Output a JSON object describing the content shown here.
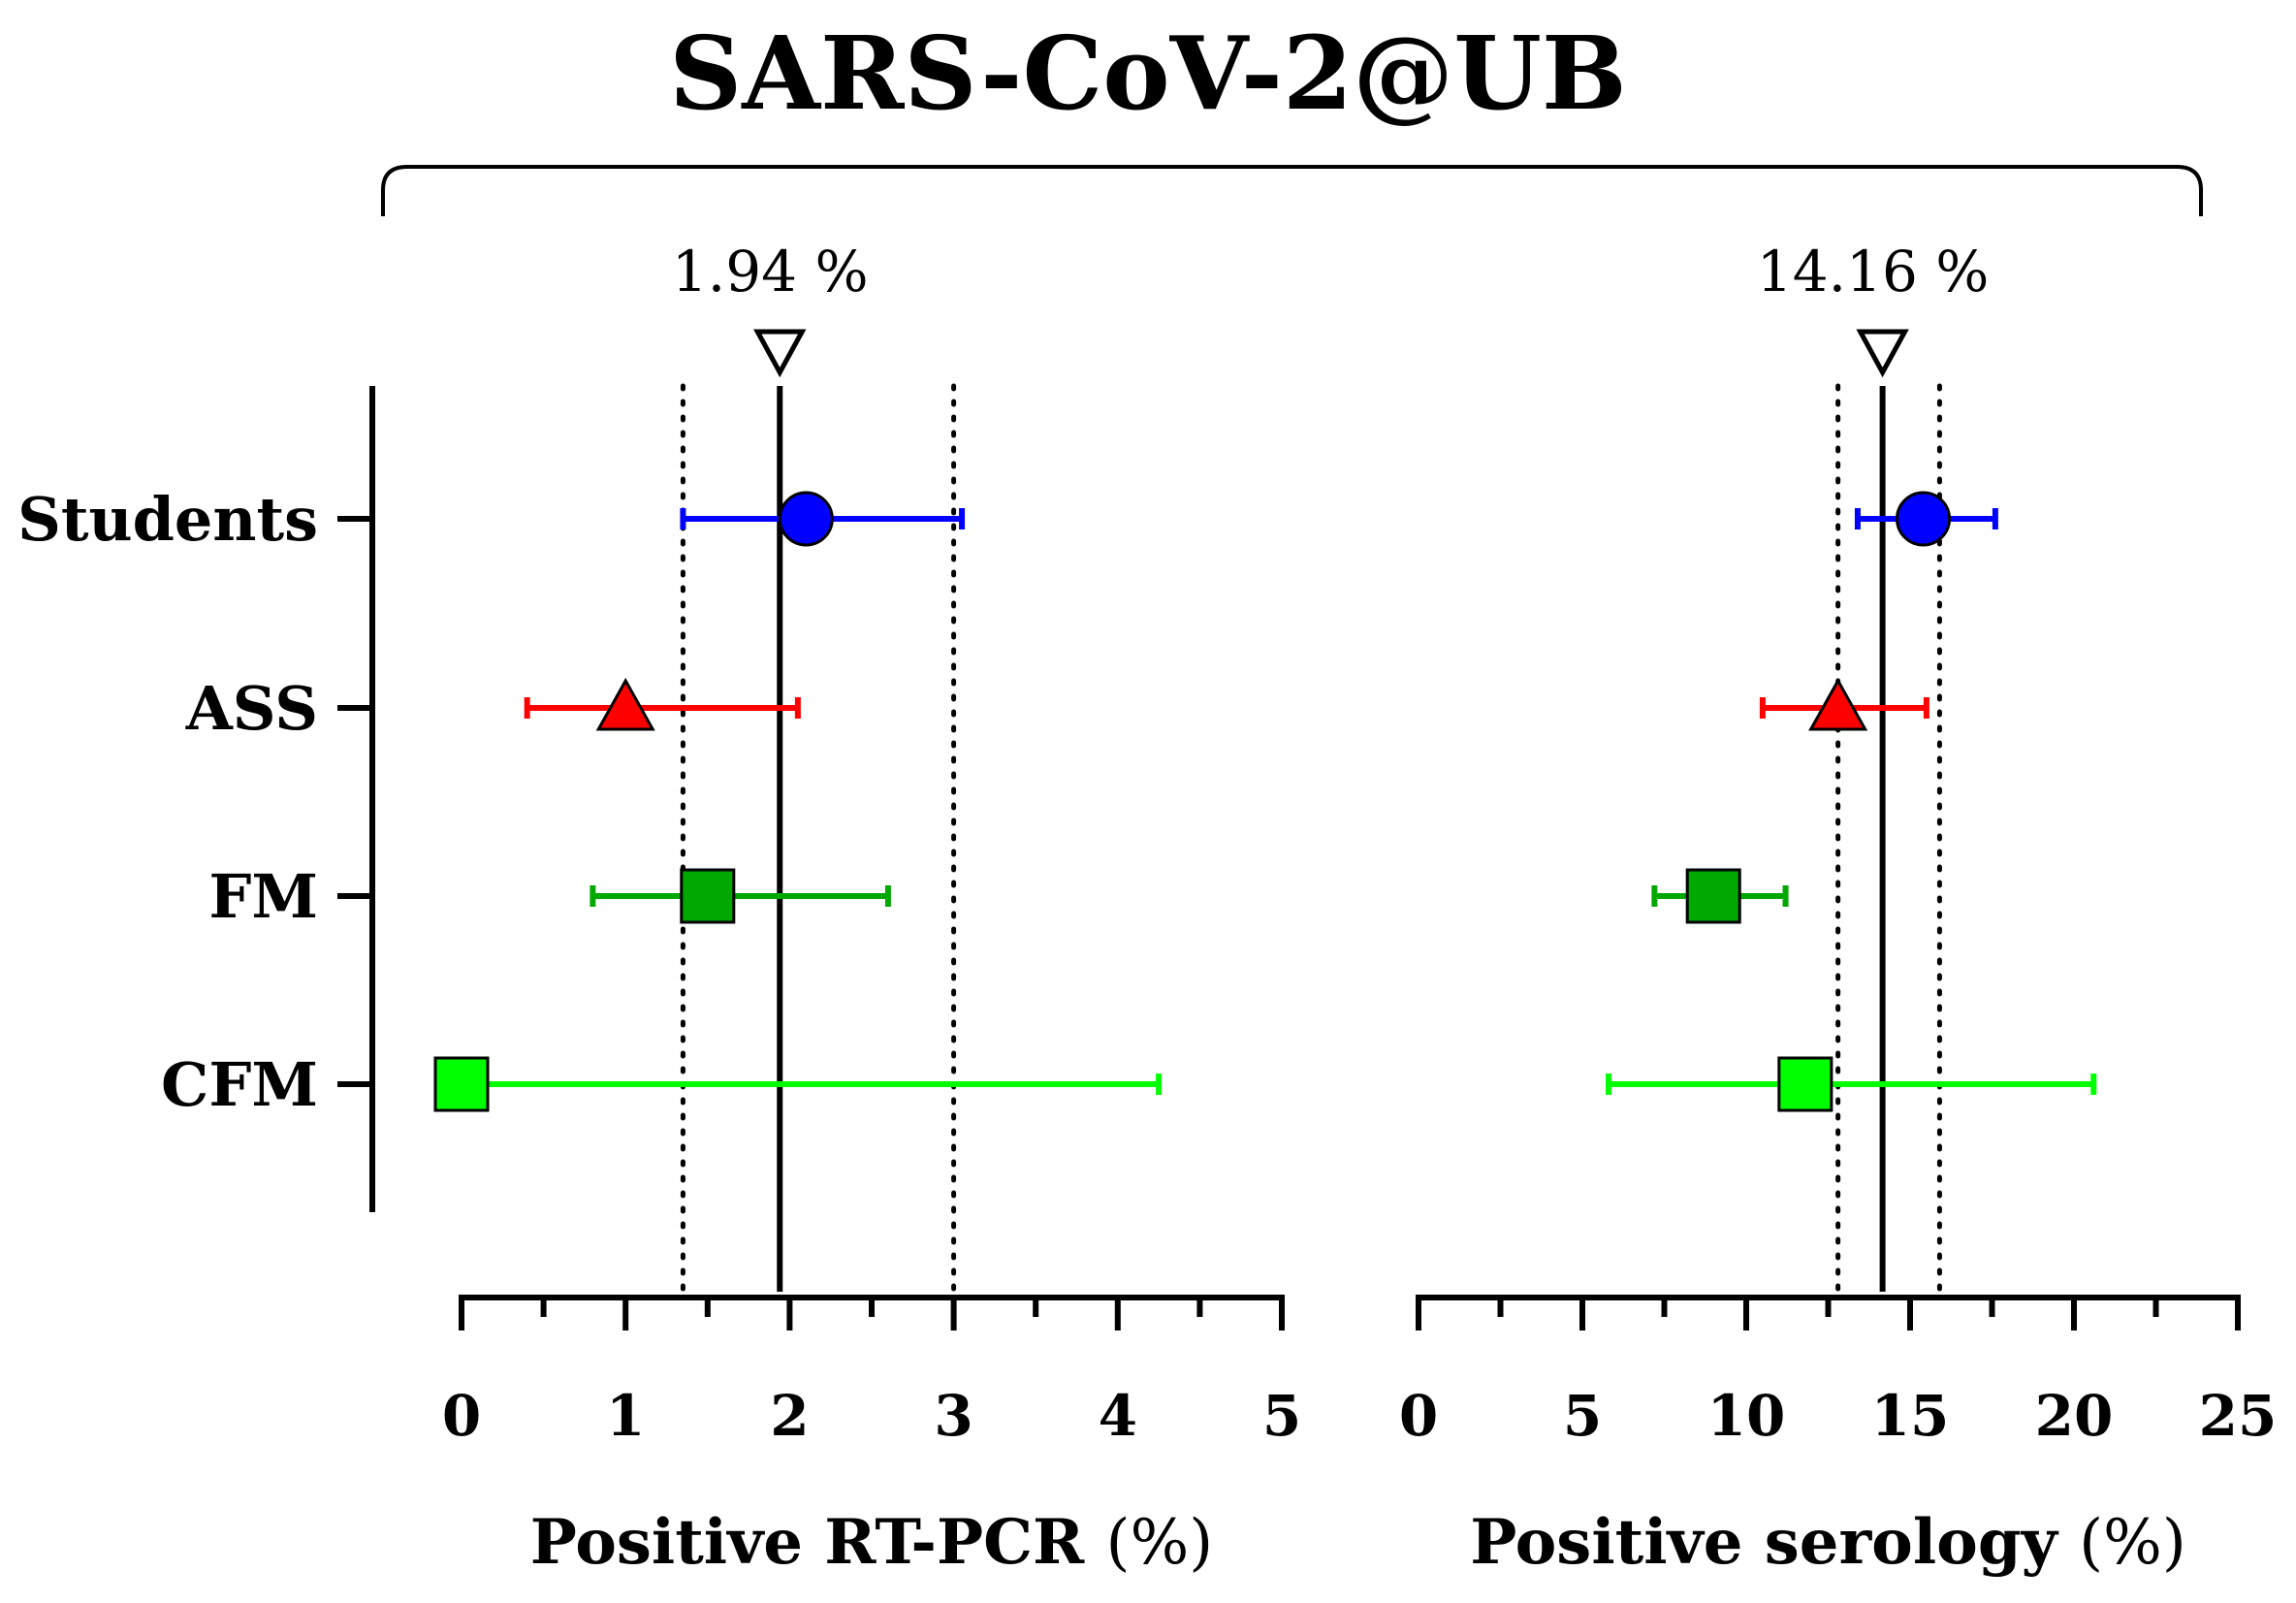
{
  "chart_data": {
    "type": "forest",
    "title": "SARS-CoV-2@UB",
    "categories": [
      "Students",
      "ASS",
      "FM",
      "CFM"
    ],
    "colors": {
      "Students": "#0000ff",
      "ASS": "#ff0000",
      "FM": "#00a800",
      "CFM": "#00ff00"
    },
    "markers": {
      "Students": "circle",
      "ASS": "triangle",
      "FM": "square",
      "CFM": "square"
    },
    "panels": [
      {
        "xlabel_bold": "Positive RT-PCR",
        "xlabel_unit": "(%)",
        "xlim": [
          0,
          5
        ],
        "xticks": [
          "0",
          "1",
          "2",
          "3",
          "4",
          "5"
        ],
        "minor_step": 0.5,
        "reference": {
          "value": 1.94,
          "ci": [
            1.35,
            3.0
          ],
          "label": "1.94 %"
        },
        "points": [
          {
            "category": "Students",
            "estimate": 2.1,
            "ci": [
              1.35,
              3.05
            ]
          },
          {
            "category": "ASS",
            "estimate": 1.0,
            "ci": [
              0.4,
              2.05
            ]
          },
          {
            "category": "FM",
            "estimate": 1.5,
            "ci": [
              0.8,
              2.6
            ]
          },
          {
            "category": "CFM",
            "estimate": 0.0,
            "ci": [
              0.0,
              4.25
            ]
          }
        ]
      },
      {
        "xlabel_bold": "Positive serology",
        "xlabel_unit": "(%)",
        "xlim": [
          0,
          25
        ],
        "xticks": [
          "0",
          "5",
          "10",
          "15",
          "20",
          "25"
        ],
        "minor_step": 2.5,
        "reference": {
          "value": 14.16,
          "ci": [
            12.8,
            15.9
          ],
          "label": "14.16 %"
        },
        "points": [
          {
            "category": "Students",
            "estimate": 15.4,
            "ci": [
              13.4,
              17.6
            ]
          },
          {
            "category": "ASS",
            "estimate": 12.8,
            "ci": [
              10.5,
              15.5
            ]
          },
          {
            "category": "FM",
            "estimate": 9.0,
            "ci": [
              7.2,
              11.2
            ]
          },
          {
            "category": "CFM",
            "estimate": 11.8,
            "ci": [
              5.8,
              20.6
            ]
          }
        ]
      }
    ]
  }
}
